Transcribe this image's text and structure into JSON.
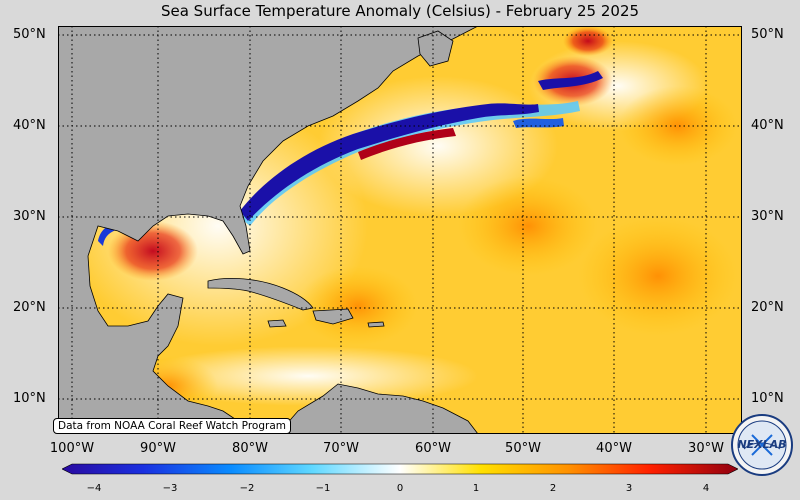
{
  "title": "Sea Surface Temperature Anomaly (Celsius) - February 25 2025",
  "credit": "Data from NOAA Coral Reef Watch Program",
  "lat_labels": [
    "50°N",
    "40°N",
    "30°N",
    "20°N",
    "10°N"
  ],
  "lon_labels": [
    "100°W",
    "90°W",
    "80°W",
    "70°W",
    "60°W",
    "50°W",
    "40°W",
    "30°W"
  ],
  "colorbar": {
    "ticks": [
      "−4",
      "−3",
      "−2",
      "−1",
      "0",
      "1",
      "2",
      "3",
      "4"
    ],
    "min": -4,
    "max": 4
  },
  "logo_text": "NEXLAB",
  "colors": {
    "land": "#a8a8a8",
    "ocean_warm": "#ffcc33",
    "ocean_neutral": "#ffffff",
    "cold_extreme": "#2a0aa0",
    "warm_extreme": "#a00010"
  }
}
